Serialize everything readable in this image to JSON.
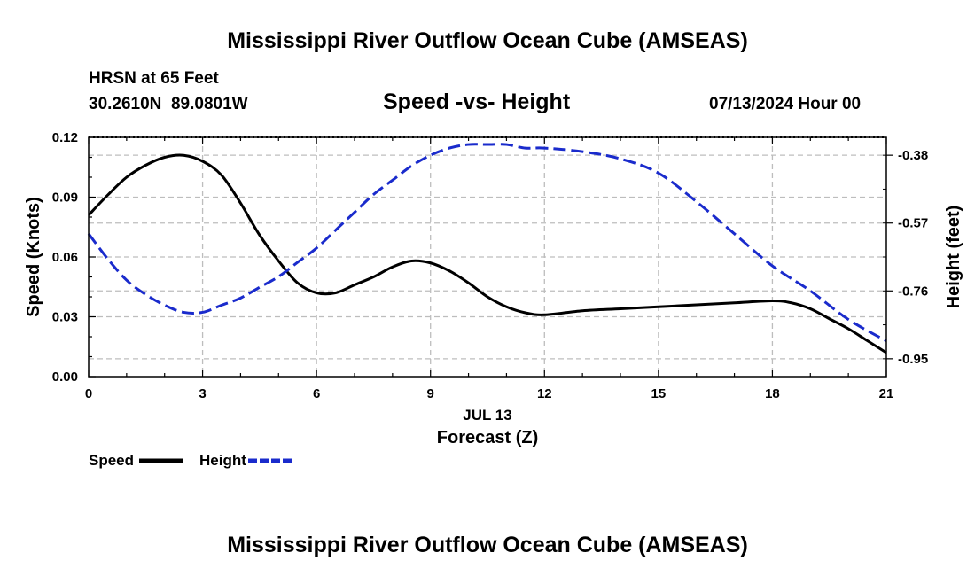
{
  "page": {
    "title_top": "Mississippi River Outflow Ocean Cube (AMSEAS)",
    "title_bottom": "Mississippi River Outflow Ocean Cube (AMSEAS)",
    "station_line": "HRSN at 65 Feet",
    "coords_line": "30.2610N  89.0801W",
    "subtitle": "Speed -vs- Height",
    "datetime": "07/13/2024 Hour 00"
  },
  "chart_data": {
    "type": "line",
    "title": "Speed -vs- Height",
    "xlabel": "Forecast (Z)",
    "xlabel_date": "JUL 13",
    "ylabel": "Speed (Knots)",
    "y2label": "Height (feet)",
    "xlim": [
      0,
      21
    ],
    "ylim": [
      0,
      0.12
    ],
    "y2lim": [
      -1.0,
      -0.33
    ],
    "x_ticks": [
      0,
      3,
      6,
      9,
      12,
      15,
      18,
      21
    ],
    "x_tick_labels": [
      "0",
      "3",
      "6",
      "9",
      "12",
      "15",
      "18",
      "21"
    ],
    "y_ticks": [
      0,
      0.03,
      0.06,
      0.09,
      0.12
    ],
    "y_tick_labels": [
      "0.00",
      "0.03",
      "0.06",
      "0.09",
      "0.12"
    ],
    "y2_ticks": [
      -0.38,
      -0.57,
      -0.76,
      -0.95
    ],
    "y2_tick_labels": [
      "-0.38",
      "-0.57",
      "-0.76",
      "-0.95"
    ],
    "grid": true,
    "legend_position": "bottom-left",
    "series": [
      {
        "name": "Speed",
        "axis": "left",
        "color": "#000000",
        "dash": "solid",
        "x": [
          0,
          0.5,
          1,
          1.5,
          2,
          2.5,
          3,
          3.5,
          4,
          4.5,
          5,
          5.5,
          6,
          6.5,
          7,
          7.5,
          8,
          8.5,
          9,
          9.5,
          10,
          10.5,
          11,
          11.5,
          12,
          13,
          14,
          15,
          16,
          17,
          18,
          18.5,
          19,
          19.5,
          20,
          20.5,
          21
        ],
        "values": [
          0.081,
          0.091,
          0.1,
          0.106,
          0.11,
          0.111,
          0.108,
          0.101,
          0.087,
          0.071,
          0.058,
          0.047,
          0.042,
          0.042,
          0.046,
          0.05,
          0.055,
          0.058,
          0.057,
          0.053,
          0.047,
          0.04,
          0.035,
          0.032,
          0.031,
          0.033,
          0.034,
          0.035,
          0.036,
          0.037,
          0.038,
          0.037,
          0.034,
          0.029,
          0.024,
          0.018,
          0.012
        ]
      },
      {
        "name": "Height",
        "axis": "right",
        "color": "#1a2bcc",
        "dash": "dashed",
        "x": [
          0,
          0.5,
          1,
          1.5,
          2,
          2.5,
          3,
          3.5,
          4,
          4.5,
          5,
          5.5,
          6,
          6.5,
          7,
          7.5,
          8,
          8.5,
          9,
          9.5,
          10,
          10.5,
          11,
          11.5,
          12,
          13,
          14,
          15,
          16,
          17,
          18,
          19,
          20,
          21
        ],
        "values": [
          -0.6,
          -0.67,
          -0.73,
          -0.77,
          -0.8,
          -0.82,
          -0.82,
          -0.8,
          -0.78,
          -0.75,
          -0.72,
          -0.68,
          -0.64,
          -0.59,
          -0.54,
          -0.49,
          -0.45,
          -0.41,
          -0.38,
          -0.36,
          -0.35,
          -0.35,
          -0.35,
          -0.36,
          -0.36,
          -0.37,
          -0.39,
          -0.43,
          -0.51,
          -0.6,
          -0.69,
          -0.76,
          -0.84,
          -0.9
        ]
      }
    ]
  }
}
